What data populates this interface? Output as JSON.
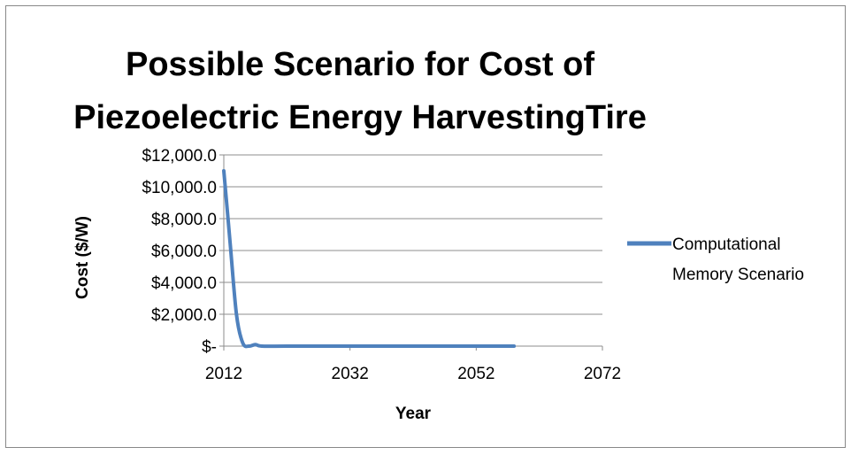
{
  "chart_data": {
    "type": "line",
    "title_lines": [
      "Possible Scenario for Cost of",
      "Piezoelectric Energy HarvestingTire"
    ],
    "xlabel": "Year",
    "ylabel": "Cost ($/W)",
    "xlim": [
      2012,
      2072
    ],
    "ylim": [
      0,
      12000
    ],
    "x_ticks": [
      2012,
      2032,
      2052,
      2072
    ],
    "y_ticks": [
      0,
      2000,
      4000,
      6000,
      8000,
      10000,
      12000
    ],
    "y_tick_labels": [
      "$-",
      "$2,000.0",
      "$4,000.0",
      "$6,000.0",
      "$8,000.0",
      "$10,000.0",
      "$12,000.0"
    ],
    "grid": true,
    "legend_position": "right",
    "series": [
      {
        "name": "Computational Memory Scenario",
        "legend_lines": [
          "Computational",
          "Memory Scenario"
        ],
        "color": "#4f81bd",
        "x": [
          2012,
          2013,
          2014,
          2015,
          2016,
          2017,
          2018,
          2022,
          2030,
          2040,
          2050,
          2058
        ],
        "y": [
          11000,
          6500,
          2000,
          200,
          0,
          100,
          0,
          0,
          0,
          0,
          0,
          0
        ]
      }
    ]
  }
}
